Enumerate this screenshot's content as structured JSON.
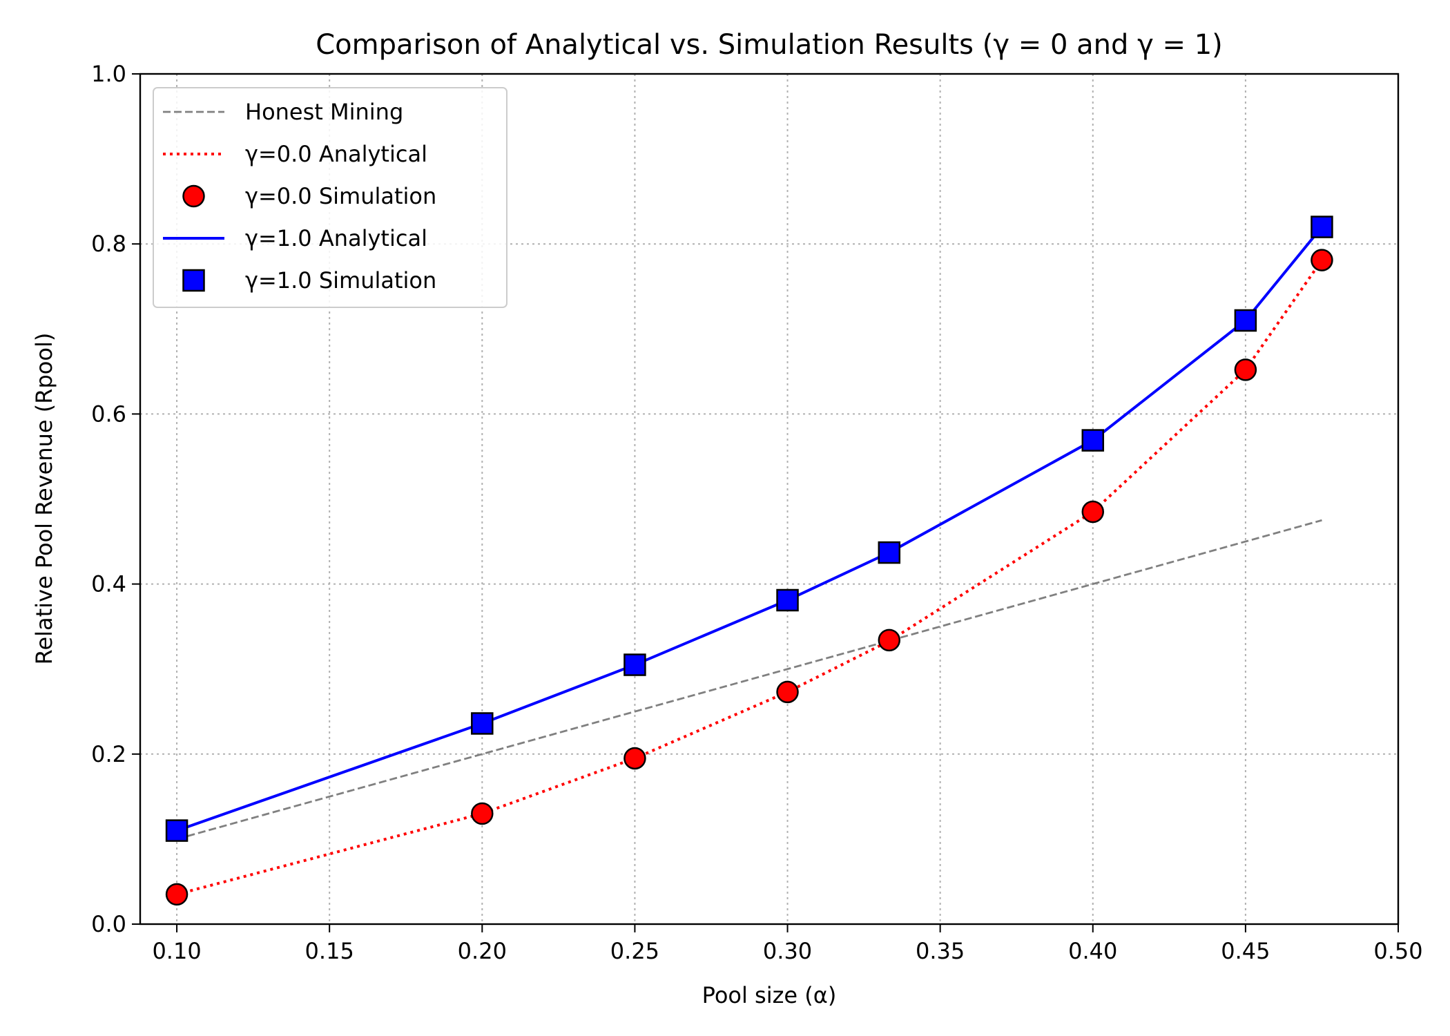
{
  "chart_data": {
    "type": "line",
    "title": "Comparison of Analytical vs. Simulation Results (γ = 0 and γ = 1)",
    "xlabel": "Pool size (α)",
    "ylabel": "Relative Pool Revenue (Rpool)",
    "xlim": [
      0.088,
      0.5
    ],
    "ylim": [
      0.0,
      1.0
    ],
    "xticks": [
      "0.10",
      "0.15",
      "0.20",
      "0.25",
      "0.30",
      "0.35",
      "0.40",
      "0.45",
      "0.50"
    ],
    "yticks": [
      "0.0",
      "0.2",
      "0.4",
      "0.6",
      "0.8",
      "1.0"
    ],
    "grid": true,
    "legend_position": "top-left",
    "series": [
      {
        "name": "Honest Mining",
        "style": "dashed-line",
        "color": "#808080",
        "x": [
          0.1,
          0.475
        ],
        "y": [
          0.1,
          0.475
        ]
      },
      {
        "name": "γ=0.0 Analytical",
        "style": "dotted-line",
        "color": "#ff0000",
        "x": [
          0.1,
          0.2,
          0.25,
          0.3,
          0.3333,
          0.4,
          0.45,
          0.475
        ],
        "y": [
          0.035,
          0.13,
          0.195,
          0.273,
          0.333,
          0.485,
          0.652,
          0.781
        ]
      },
      {
        "name": "γ=0.0 Simulation",
        "style": "circle-markers",
        "color": "#ff0000",
        "x": [
          0.1,
          0.2,
          0.25,
          0.3,
          0.3333,
          0.4,
          0.45,
          0.475
        ],
        "y": [
          0.035,
          0.13,
          0.195,
          0.273,
          0.334,
          0.485,
          0.652,
          0.781
        ]
      },
      {
        "name": "γ=1.0 Analytical",
        "style": "solid-line",
        "color": "#0000ff",
        "x": [
          0.1,
          0.2,
          0.25,
          0.3,
          0.3333,
          0.4,
          0.45,
          0.475
        ],
        "y": [
          0.11,
          0.236,
          0.305,
          0.381,
          0.437,
          0.569,
          0.71,
          0.82
        ]
      },
      {
        "name": "γ=1.0 Simulation",
        "style": "square-markers",
        "color": "#0000ff",
        "x": [
          0.1,
          0.2,
          0.25,
          0.3,
          0.3333,
          0.4,
          0.45,
          0.475
        ],
        "y": [
          0.11,
          0.236,
          0.305,
          0.381,
          0.437,
          0.569,
          0.71,
          0.82
        ]
      }
    ]
  }
}
